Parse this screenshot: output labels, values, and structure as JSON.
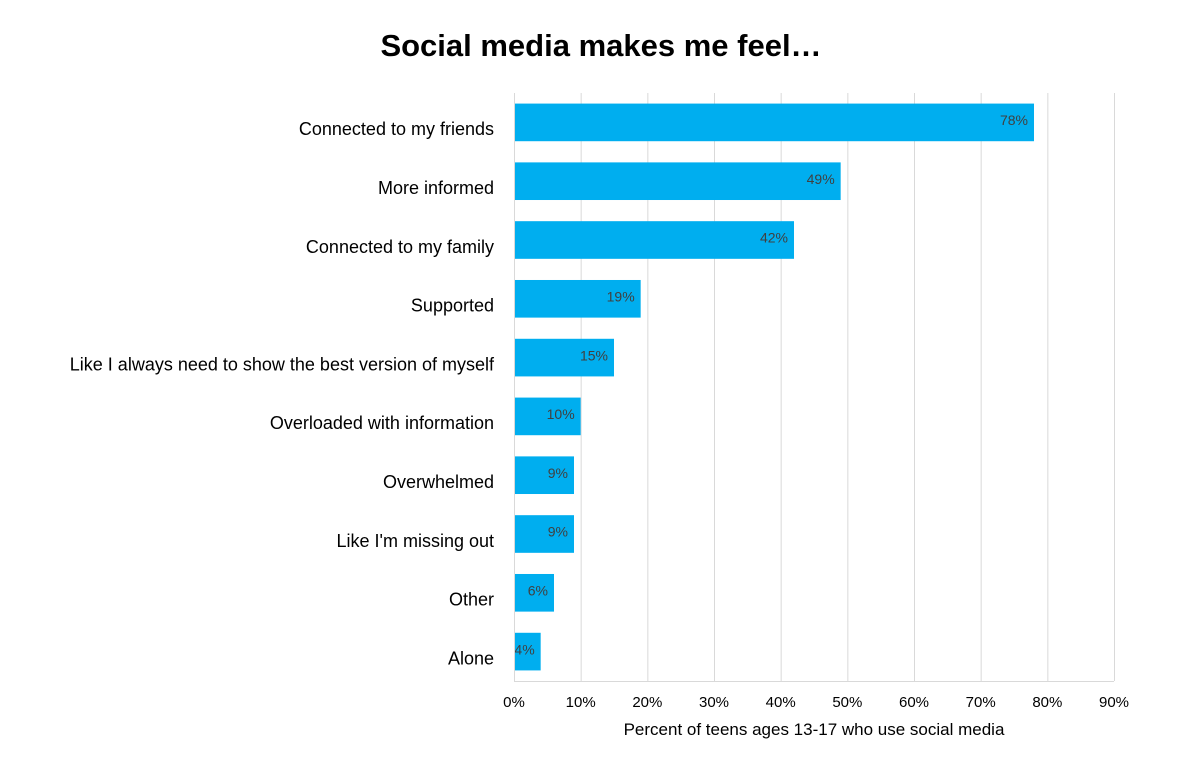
{
  "chart_data": {
    "type": "bar",
    "orientation": "horizontal",
    "title": "Social media makes me feel…",
    "xlabel": "Percent of teens ages 13-17 who use social media",
    "ylabel": "",
    "categories": [
      "Connected to my friends",
      "More informed",
      "Connected to my family",
      "Supported",
      "Like I always need to show the best version of myself",
      "Overloaded with information",
      "Overwhelmed",
      "Like I'm missing out",
      "Other",
      "Alone"
    ],
    "values": [
      78,
      49,
      42,
      19,
      15,
      10,
      9,
      9,
      6,
      4
    ],
    "data_labels": [
      "78%",
      "49%",
      "42%",
      "19%",
      "15%",
      "10%",
      "9%",
      "9%",
      "6%",
      "4%"
    ],
    "xlim": [
      0,
      90
    ],
    "xticks": [
      0,
      10,
      20,
      30,
      40,
      50,
      60,
      70,
      80,
      90
    ],
    "xtick_labels": [
      "0%",
      "10%",
      "20%",
      "30%",
      "40%",
      "50%",
      "60%",
      "70%",
      "80%",
      "90%"
    ],
    "grid": true,
    "bar_color": "#00AEEF",
    "gridline_color": "#D9D9D9",
    "label_color": "#404040"
  }
}
